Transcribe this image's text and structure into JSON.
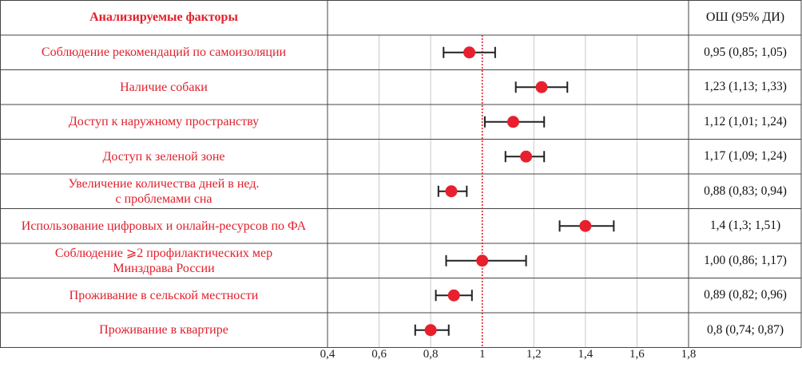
{
  "header": {
    "factors_label": "Анализируемые факторы",
    "or_label": "ОШ (95% ДИ)"
  },
  "chart_data": {
    "type": "forest",
    "reference_line": 1,
    "xlim": [
      0.4,
      1.8
    ],
    "xticks": [
      "0,4",
      "0,6",
      "0,8",
      "1",
      "1,2",
      "1,4",
      "1,6",
      "1,8"
    ],
    "xtick_values": [
      0.4,
      0.6,
      0.8,
      1.0,
      1.2,
      1.4,
      1.6,
      1.8
    ],
    "grid": true,
    "colors": {
      "point": "#e8202e",
      "label": "#e0202c",
      "whisker": "#222222",
      "reference": "#e0202c"
    },
    "rows": [
      {
        "factor": "Соблюдение рекомендаций по самоизоляции",
        "or": 0.95,
        "lo": 0.85,
        "hi": 1.05,
        "label": "0,95 (0,85; 1,05)"
      },
      {
        "factor": "Наличие собаки",
        "or": 1.23,
        "lo": 1.13,
        "hi": 1.33,
        "label": "1,23 (1,13; 1,33)"
      },
      {
        "factor": "Доступ к наружному пространству",
        "or": 1.12,
        "lo": 1.01,
        "hi": 1.24,
        "label": "1,12 (1,01; 1,24)"
      },
      {
        "factor": "Доступ к зеленой зоне",
        "or": 1.17,
        "lo": 1.09,
        "hi": 1.24,
        "label": "1,17 (1,09; 1,24)"
      },
      {
        "factor": "Увеличение количества дней в нед.\nс проблемами сна",
        "or": 0.88,
        "lo": 0.83,
        "hi": 0.94,
        "label": "0,88 (0,83; 0,94)"
      },
      {
        "factor": "Использование цифровых и онлайн-ресурсов по ФА",
        "or": 1.4,
        "lo": 1.3,
        "hi": 1.51,
        "label": "1,4 (1,3; 1,51)"
      },
      {
        "factor": "Соблюдение ⩾2 профилактических мер\nМинздрава России",
        "or": 1.0,
        "lo": 0.86,
        "hi": 1.17,
        "label": "1,00 (0,86; 1,17)"
      },
      {
        "factor": "Проживание в сельской местности",
        "or": 0.89,
        "lo": 0.82,
        "hi": 0.96,
        "label": "0,89 (0,82; 0,96)"
      },
      {
        "factor": "Проживание в квартире",
        "or": 0.8,
        "lo": 0.74,
        "hi": 0.87,
        "label": "0,8 (0,74; 0,87)"
      }
    ]
  }
}
